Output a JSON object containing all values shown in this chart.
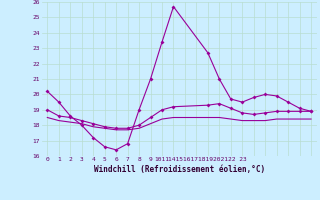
{
  "xlabel": "Windchill (Refroidissement éolien,°C)",
  "background_color": "#cceeff",
  "grid_color": "#b8ddd0",
  "line_color": "#990099",
  "x_tick_labels": [
    "0",
    "1",
    "2",
    "3",
    "4",
    "5",
    "6",
    "7",
    "8",
    "9",
    "1011",
    "",
    "141516171819202122 23",
    "",
    "",
    "",
    "",
    "",
    "",
    "",
    "",
    ""
  ],
  "ylim": [
    16,
    26
  ],
  "yticks": [
    16,
    17,
    18,
    19,
    20,
    21,
    22,
    23,
    24,
    25,
    26
  ],
  "series1_x": [
    0,
    1,
    2,
    3,
    4,
    5,
    6,
    7,
    8,
    9,
    10,
    11,
    14,
    15,
    16,
    17,
    18,
    19,
    20,
    21,
    22,
    23
  ],
  "series1_y": [
    20.2,
    19.5,
    18.6,
    18.0,
    17.2,
    16.6,
    16.4,
    16.8,
    19.0,
    21.0,
    23.4,
    25.7,
    22.7,
    21.0,
    19.7,
    19.5,
    19.8,
    20.0,
    19.9,
    19.5,
    19.1,
    18.9
  ],
  "series2_x": [
    0,
    1,
    2,
    3,
    4,
    5,
    6,
    7,
    8,
    9,
    10,
    11,
    14,
    15,
    16,
    17,
    18,
    19,
    20,
    21,
    22,
    23
  ],
  "series2_y": [
    19.0,
    18.6,
    18.5,
    18.3,
    18.1,
    17.9,
    17.8,
    17.8,
    18.0,
    18.5,
    19.0,
    19.2,
    19.3,
    19.4,
    19.1,
    18.8,
    18.7,
    18.8,
    18.9,
    18.9,
    18.9,
    18.9
  ],
  "series3_x": [
    0,
    1,
    2,
    3,
    4,
    5,
    6,
    7,
    8,
    9,
    10,
    11,
    14,
    15,
    16,
    17,
    18,
    19,
    20,
    21,
    22,
    23
  ],
  "series3_y": [
    18.5,
    18.3,
    18.2,
    18.1,
    17.9,
    17.8,
    17.7,
    17.7,
    17.8,
    18.1,
    18.4,
    18.5,
    18.5,
    18.5,
    18.4,
    18.3,
    18.3,
    18.3,
    18.4,
    18.4,
    18.4,
    18.4
  ],
  "xlim_min": -0.5,
  "xlim_max": 23.5
}
